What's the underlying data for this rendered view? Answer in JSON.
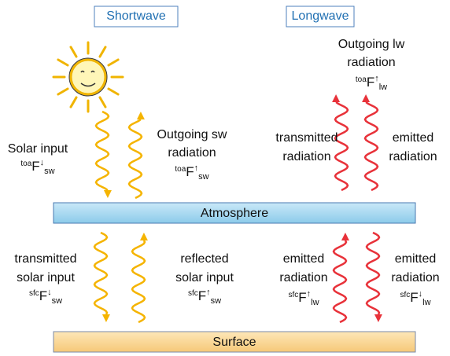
{
  "headers": {
    "shortwave": "Shortwave",
    "longwave": "Longwave"
  },
  "layers": {
    "atmosphere": "Atmosphere",
    "surface": "Surface"
  },
  "labels": [
    {
      "lines": [
        "Solar input"
      ],
      "flux": {
        "pre": "toa",
        "main": "F",
        "arrow": "↓",
        "sub": "sw"
      }
    },
    {
      "lines": [
        "Outgoing sw",
        "radiation"
      ],
      "flux": {
        "pre": "toa",
        "main": "F",
        "arrow": "↑",
        "sub": "sw"
      }
    },
    {
      "lines": [
        "Outgoing lw",
        "radiation"
      ],
      "flux": {
        "pre": "toa",
        "main": "F",
        "arrow": "↑",
        "sub": "lw"
      }
    },
    {
      "lines": [
        "transmitted",
        "radiation"
      ]
    },
    {
      "lines": [
        "emitted",
        "radiation"
      ]
    },
    {
      "lines": [
        "transmitted",
        "solar input"
      ],
      "flux": {
        "pre": "sfc",
        "main": "F",
        "arrow": "↓",
        "sub": "sw"
      }
    },
    {
      "lines": [
        "reflected",
        "solar input"
      ],
      "flux": {
        "pre": "sfc",
        "main": "F",
        "arrow": "↑",
        "sub": "sw"
      }
    },
    {
      "lines": [
        "emitted",
        "radiation"
      ],
      "flux": {
        "pre": "sfc",
        "main": "F",
        "arrow": "↑",
        "sub": "lw"
      }
    },
    {
      "lines": [
        "emitted",
        "radiation"
      ],
      "flux": {
        "pre": "sfc",
        "main": "F",
        "arrow": "↓",
        "sub": "lw"
      }
    }
  ]
}
